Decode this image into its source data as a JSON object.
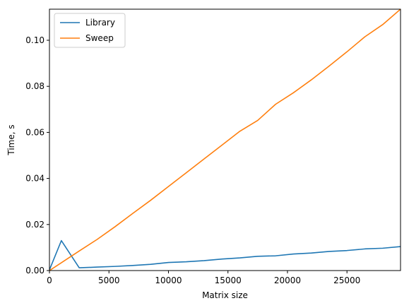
{
  "chart_data": {
    "type": "line",
    "xlabel": "Matrix size",
    "ylabel": "Time, s",
    "xlim": [
      0,
      29500
    ],
    "ylim": [
      0,
      0.1135
    ],
    "xticks": [
      0,
      5000,
      10000,
      15000,
      20000,
      25000
    ],
    "xtick_labels": [
      "0",
      "5000",
      "10000",
      "15000",
      "20000",
      "25000"
    ],
    "yticks": [
      0,
      0.02,
      0.04,
      0.06,
      0.08,
      0.1
    ],
    "ytick_labels": [
      "0.00",
      "0.02",
      "0.04",
      "0.06",
      "0.08",
      "0.10"
    ],
    "grid": false,
    "legend_position": "top-left",
    "series": [
      {
        "name": "Library",
        "color": "#1f77b4",
        "x": [
          0,
          1000,
          2500,
          4000,
          5500,
          7000,
          8500,
          10000,
          11500,
          13000,
          14500,
          16000,
          17500,
          19000,
          20500,
          22000,
          23500,
          25000,
          26500,
          28000,
          29500
        ],
        "y": [
          0.0003,
          0.013,
          0.0012,
          0.0015,
          0.0018,
          0.0022,
          0.0027,
          0.0035,
          0.0038,
          0.0043,
          0.005,
          0.0055,
          0.0062,
          0.0064,
          0.0072,
          0.0076,
          0.0083,
          0.0087,
          0.0094,
          0.0097,
          0.0104
        ]
      },
      {
        "name": "Sweep",
        "color": "#ff7f0e",
        "x": [
          0,
          2500,
          4000,
          5500,
          7000,
          8500,
          10000,
          11500,
          13000,
          14500,
          16000,
          17500,
          19000,
          20500,
          22000,
          23500,
          25000,
          26500,
          28000,
          29500
        ],
        "y": [
          0.0,
          0.0085,
          0.0135,
          0.019,
          0.0248,
          0.0305,
          0.0365,
          0.0425,
          0.0485,
          0.0545,
          0.0605,
          0.0652,
          0.0722,
          0.0772,
          0.0828,
          0.0888,
          0.095,
          0.1015,
          0.1068,
          0.1135
        ]
      }
    ]
  }
}
